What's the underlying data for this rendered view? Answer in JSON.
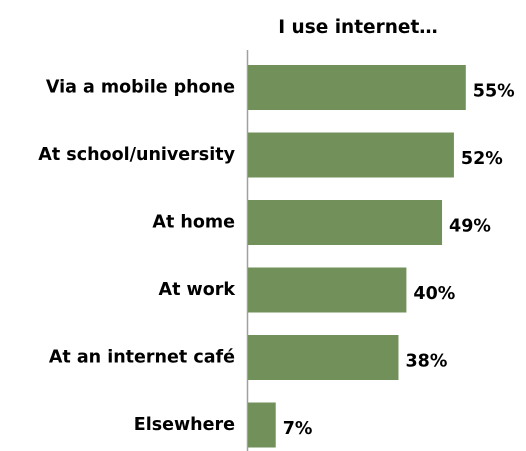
{
  "chart_data": {
    "type": "bar",
    "orientation": "horizontal",
    "title": "I use internet…",
    "categories": [
      "Via a mobile phone",
      "At school/university",
      "At home",
      "At work",
      "At an internet café",
      "Elsewhere"
    ],
    "values": [
      55,
      52,
      49,
      40,
      38,
      7
    ],
    "value_labels": [
      "55%",
      "52%",
      "49%",
      "40%",
      "38%",
      "7%"
    ],
    "unit": "%",
    "xlim": [
      0,
      100
    ],
    "grid": false,
    "legend": "none",
    "bar_color": "#72905A"
  }
}
